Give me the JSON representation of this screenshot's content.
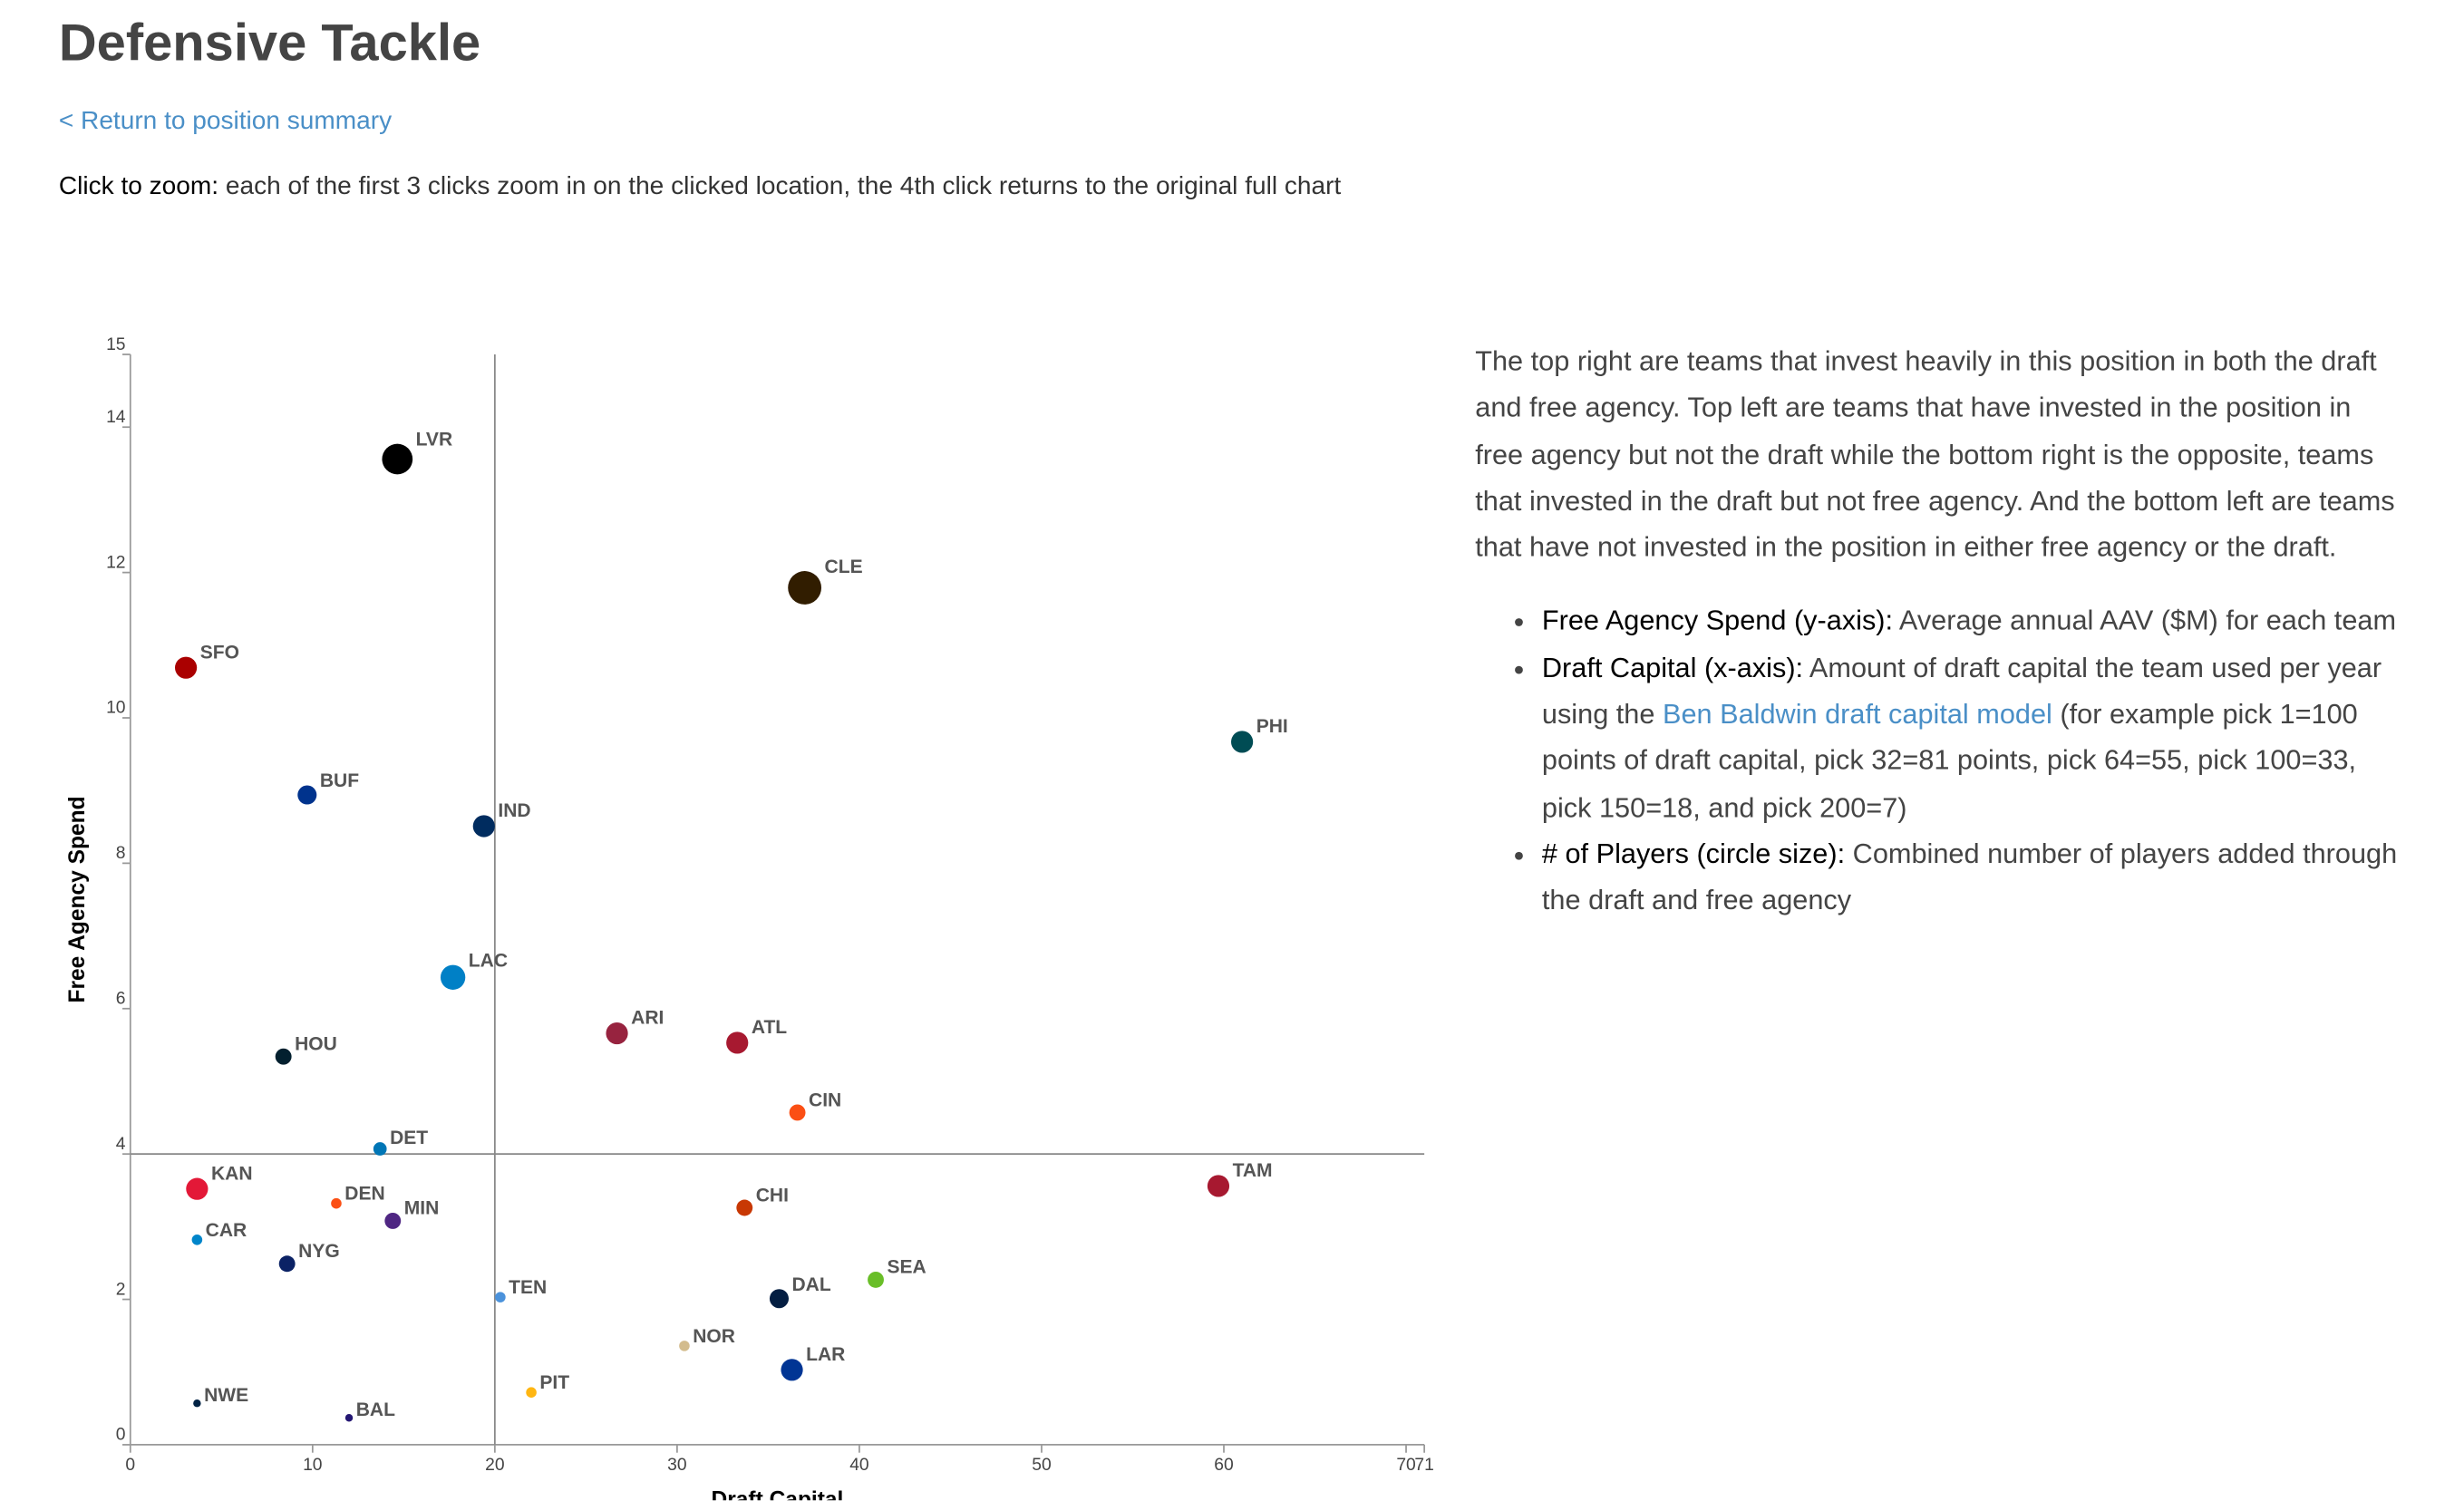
{
  "header": {
    "title": "Defensive Tackle",
    "link": "< Return to position summary",
    "zoom_label": "Click to zoom:",
    "zoom_text": "each of the first 3 clicks zoom in on the clicked location, the 4th click returns to the original full chart"
  },
  "chart_data": {
    "type": "scatter",
    "x_label": "Draft Capital",
    "y_label": "Free Agency Spend",
    "xlim": [
      0,
      71
    ],
    "xticks": [
      0,
      10,
      20,
      30,
      40,
      50,
      60,
      70,
      71
    ],
    "ylim": [
      0,
      15
    ],
    "yticks": [
      0,
      2,
      4,
      6,
      8,
      10,
      12,
      14,
      15
    ],
    "reference_x": 20,
    "reference_y": 4,
    "labels": [
      "LVR",
      "CLE",
      "SFO",
      "PHI",
      "BUF",
      "IND",
      "LAC",
      "HOU",
      "ARI",
      "ATL",
      "CIN",
      "DET",
      "KAN",
      "DEN",
      "MIN",
      "CAR",
      "NYG",
      "CHI",
      "TAM",
      "SEA",
      "DAL",
      "TEN",
      "NOR",
      "LAR",
      "PIT",
      "NWE",
      "BAL"
    ],
    "x": [
      14.65,
      37.0,
      3.05,
      61.0,
      9.7,
      19.4,
      17.7,
      8.4,
      26.7,
      33.3,
      36.6,
      13.7,
      3.66,
      11.3,
      14.4,
      3.66,
      8.6,
      33.7,
      59.7,
      40.9,
      35.6,
      20.3,
      30.4,
      36.3,
      22.0,
      3.66,
      12.0
    ],
    "y": [
      13.56,
      11.79,
      10.69,
      9.67,
      8.94,
      8.51,
      6.43,
      5.34,
      5.66,
      5.53,
      4.57,
      4.07,
      3.52,
      3.32,
      3.08,
      2.82,
      2.49,
      3.26,
      3.56,
      2.27,
      2.01,
      2.03,
      1.36,
      1.03,
      0.72,
      0.57,
      0.37
    ],
    "sizes": [
      9,
      10,
      6,
      6,
      5,
      6,
      7,
      4,
      6,
      6,
      4,
      3,
      6,
      2,
      4,
      2,
      4,
      4,
      6,
      4,
      5,
      2,
      2,
      6,
      2,
      1,
      1
    ],
    "colors": [
      "#000000",
      "#311d00",
      "#aa0000",
      "#004c54",
      "#00338d",
      "#002c5f",
      "#0080c6",
      "#03202f",
      "#97233f",
      "#a71930",
      "#fb4f14",
      "#0076b6",
      "#e31837",
      "#fb4f14",
      "#4f2683",
      "#0085ca",
      "#0b2265",
      "#c83803",
      "#a71930",
      "#69be28",
      "#041e42",
      "#4b92db",
      "#d3bc8d",
      "#003594",
      "#ffb612",
      "#002244",
      "#241773"
    ]
  },
  "description": {
    "paragraph": "The top right are teams that invest heavily in this position in both the draft and free agency. Top left are teams that have invested in the position in free agency but not the draft while the bottom right is the opposite, teams that invested in the draft but not free agency. And the bottom left are teams that have not invested in the position in either free agency or the draft.",
    "bullets": [
      {
        "label": "Free Agency Spend (y-axis):",
        "text": "Average annual AAV ($M) for each team"
      },
      {
        "label": "Draft Capital (x-axis):",
        "text": "Amount of draft capital the team used per year using the",
        "link": "Ben Baldwin draft capital model",
        "text_after": "(for example pick 1=100 points of draft capital, pick 32=81 points, pick 64=55, pick 100=33, pick 150=18, and pick 200=7)"
      },
      {
        "label": "# of Players (circle size):",
        "text": "Combined number of players added through the draft and free agency"
      }
    ]
  }
}
